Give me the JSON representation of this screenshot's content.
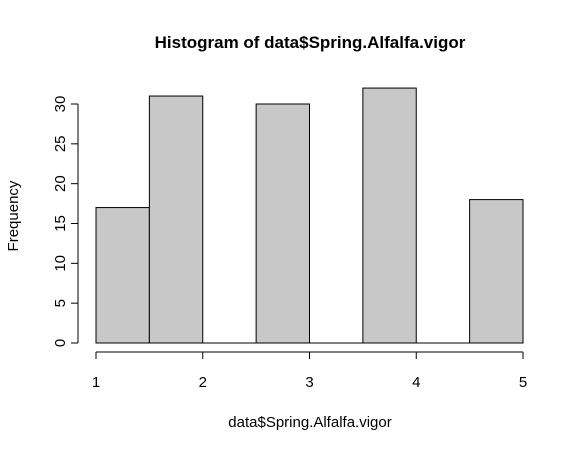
{
  "chart_data": {
    "type": "bar",
    "title": "Histogram of data$Spring.Alfalfa.vigor",
    "xlabel": "data$Spring.Alfalfa.vigor",
    "ylabel": "Frequency",
    "bins": [
      {
        "start": 1.0,
        "end": 1.5,
        "count": 17
      },
      {
        "start": 1.5,
        "end": 2.0,
        "count": 31
      },
      {
        "start": 2.0,
        "end": 2.5,
        "count": 0
      },
      {
        "start": 2.5,
        "end": 3.0,
        "count": 30
      },
      {
        "start": 3.0,
        "end": 3.5,
        "count": 0
      },
      {
        "start": 3.5,
        "end": 4.0,
        "count": 32
      },
      {
        "start": 4.0,
        "end": 4.5,
        "count": 0
      },
      {
        "start": 4.5,
        "end": 5.0,
        "count": 18
      }
    ],
    "xlim": [
      1,
      5
    ],
    "ylim": [
      0,
      32
    ],
    "x_ticks": [
      1,
      2,
      3,
      4,
      5
    ],
    "y_ticks": [
      0,
      5,
      10,
      15,
      20,
      25,
      30
    ],
    "grid": false,
    "legend": "none",
    "colors": {
      "bar_fill": "#c8c8c8",
      "bar_stroke": "#000000",
      "axis": "#000000"
    }
  }
}
